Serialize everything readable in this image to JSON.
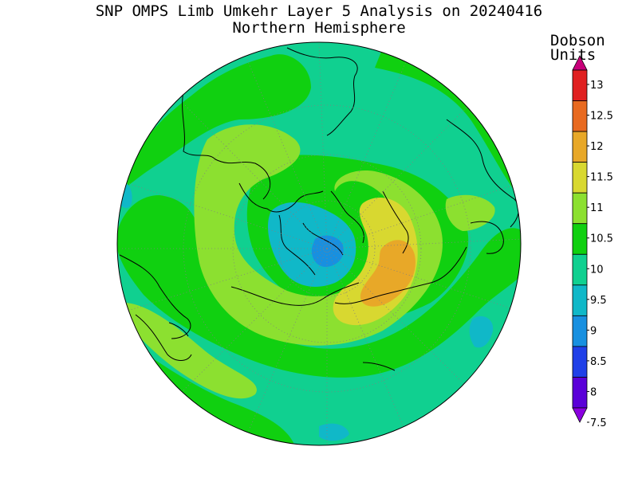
{
  "title": "SNP OMPS Limb Umkehr Layer 5 Analysis on 20240416",
  "subtitle": "Northern Hemisphere",
  "colorbar": {
    "units_line1": "Dobson",
    "units_line2": "Units",
    "levels": [
      "7.5",
      "8",
      "8.5",
      "9",
      "9.5",
      "10",
      "10.5",
      "11",
      "11.5",
      "12",
      "12.5",
      "13"
    ],
    "colors": [
      "#8a00e0",
      "#5a00d8",
      "#2040e8",
      "#1890e0",
      "#10b8c8",
      "#10d090",
      "#10d010",
      "#8ce030",
      "#d8d830",
      "#e8a828",
      "#e86a20",
      "#e02020",
      "#c8007a"
    ]
  },
  "map": {
    "projection": "north-polar-stereographic",
    "background_color": "#10d090",
    "field_colors": {
      "9": "#1890e0",
      "9.5": "#10b8c8",
      "10": "#10d090",
      "10.5": "#10d010",
      "11": "#8ce030",
      "11.5": "#d8d830",
      "12": "#e8a828"
    }
  }
}
